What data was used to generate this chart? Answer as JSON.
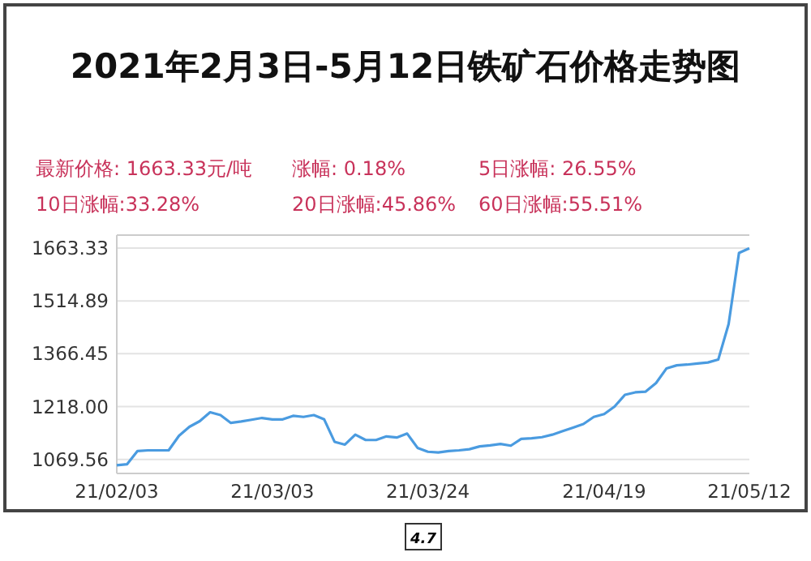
{
  "chart_data": {
    "type": "line",
    "title": "2021年2月3日-5月12日铁矿石价格走势图",
    "annotations": [
      "最新价格: 1663.33元/吨",
      "涨幅: 0.18%",
      "5日涨幅: 26.55%",
      "10日涨幅:33.28%",
      "20日涨幅:45.86%",
      "60日涨幅:55.51%",
      "4.7"
    ],
    "categories": [
      "21/02/03",
      null,
      null,
      null,
      null,
      null,
      null,
      null,
      null,
      null,
      null,
      null,
      null,
      null,
      null,
      "21/03/03",
      null,
      null,
      null,
      null,
      null,
      null,
      null,
      null,
      null,
      null,
      null,
      null,
      null,
      null,
      "21/03/24",
      null,
      null,
      null,
      null,
      null,
      null,
      null,
      null,
      null,
      null,
      null,
      null,
      null,
      null,
      null,
      null,
      "21/04/19",
      null,
      null,
      null,
      null,
      null,
      null,
      null,
      null,
      null,
      null,
      null,
      null,
      null,
      "21/05/12"
    ],
    "series": [
      {
        "color": "#4a9be0",
        "values": [
          1053,
          1056,
          1093,
          1095,
          1095,
          1095,
          1136,
          1161,
          1177,
          1202,
          1194,
          1172,
          1176,
          1181,
          1186,
          1182,
          1182,
          1192,
          1189,
          1194,
          1182,
          1119,
          1111,
          1139,
          1124,
          1124,
          1134,
          1131,
          1142,
          1102,
          1091,
          1089,
          1093,
          1095,
          1098,
          1106,
          1109,
          1113,
          1108,
          1127,
          1129,
          1132,
          1139,
          1149,
          1159,
          1169,
          1189,
          1197,
          1218,
          1251,
          1258,
          1260,
          1284,
          1325,
          1334,
          1336,
          1339,
          1342,
          1350,
          1450,
          1650,
          1663
        ]
      }
    ],
    "ylim": [
      1030,
      1700
    ],
    "yticks": [
      {
        "value": 1069.56,
        "label": "1069.56"
      },
      {
        "value": 1218,
        "label": "1218.00"
      },
      {
        "value": 1366.45,
        "label": "1366.45"
      },
      {
        "value": 1514.89,
        "label": "1514.89"
      },
      {
        "value": 1663.33,
        "label": "1663.33"
      }
    ],
    "grid": "y",
    "marker": "none",
    "line_style": "solid"
  }
}
